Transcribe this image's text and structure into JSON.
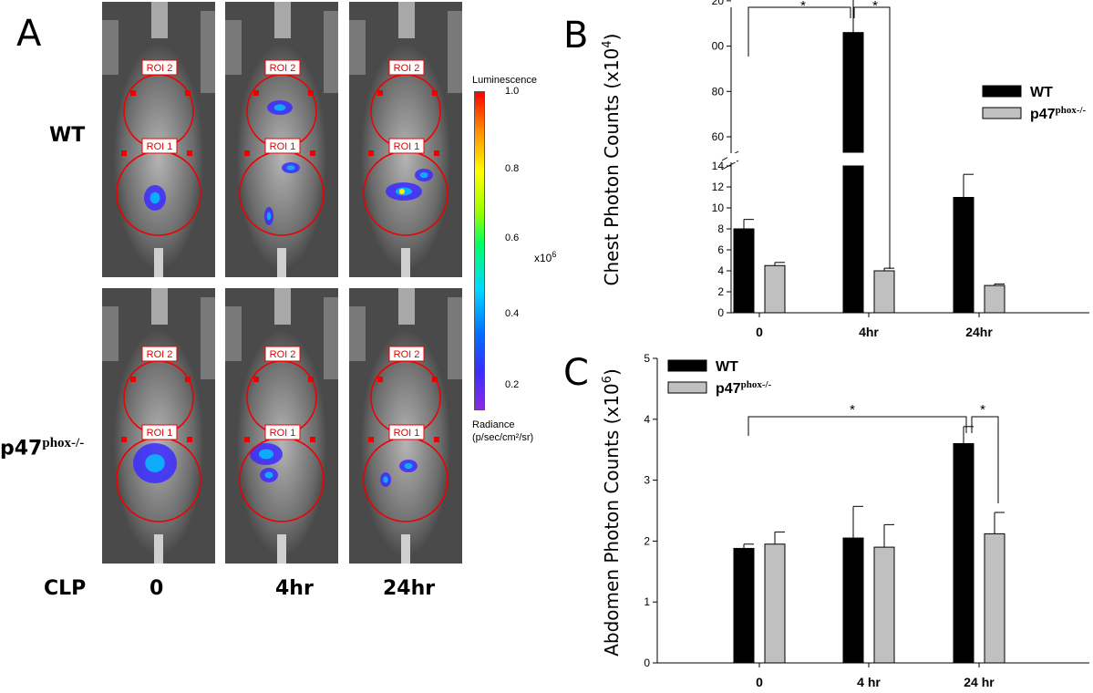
{
  "figure": {
    "panel_a": {
      "letter": "A",
      "row_labels": [
        {
          "text": "WT",
          "sup": ""
        },
        {
          "text": "p47",
          "sup": "phox-/-"
        }
      ],
      "col_labels": [
        "CLP",
        "0",
        "4hr",
        "24hr"
      ],
      "roi_labels": [
        "ROI 2",
        "ROI 1"
      ],
      "colorbar": {
        "title": "Luminescence",
        "ticks": [
          "1.0",
          "0.8",
          "0.6",
          "0.4",
          "0.2"
        ],
        "scale_label": "x10",
        "scale_exp": "6",
        "units_line1": "Radiance",
        "units_line2": "(p/sec/cm²/sr)"
      }
    },
    "panel_b_letter": "B",
    "panel_c_letter": "C"
  },
  "chart_data": [
    {
      "type": "bar",
      "panel": "B",
      "ylabel": "Chest Photon Counts (x10",
      "ylabel_exp": "4",
      "categories": [
        "0",
        "4hr",
        "24hr"
      ],
      "series": [
        {
          "name": "WT",
          "values": [
            8.0,
            106,
            11.0
          ],
          "errors": [
            0.9,
            25,
            2.2
          ],
          "color": "#000000"
        },
        {
          "name": "p47",
          "name_sup": "phox-/-",
          "values": [
            4.5,
            4.0,
            2.6
          ],
          "errors": [
            0.3,
            0.25,
            0.15
          ],
          "color": "#c0c0c0"
        }
      ],
      "axis_break": {
        "lower": [
          0,
          14
        ],
        "upper": [
          60,
          120
        ]
      },
      "yticks_lower": [
        "0",
        "2",
        "4",
        "6",
        "8",
        "10",
        "12",
        "14"
      ],
      "yticks_upper": [
        "60",
        "80",
        "00",
        "20"
      ],
      "significance": [
        "*",
        "*"
      ],
      "legend_position": "top-right"
    },
    {
      "type": "bar",
      "panel": "C",
      "ylabel": "Abdomen Photon Counts (x10",
      "ylabel_exp": "6",
      "categories": [
        "0",
        "4 hr",
        "24 hr"
      ],
      "series": [
        {
          "name": "WT",
          "values": [
            1.88,
            2.05,
            3.6
          ],
          "errors": [
            0.07,
            0.52,
            0.28
          ],
          "color": "#000000"
        },
        {
          "name": "p47",
          "name_sup": "phox-/-",
          "values": [
            1.95,
            1.9,
            2.12
          ],
          "errors": [
            0.2,
            0.37,
            0.35
          ],
          "color": "#c0c0c0"
        }
      ],
      "ylim": [
        0,
        5
      ],
      "yticks": [
        "0",
        "1",
        "2",
        "3",
        "4",
        "5"
      ],
      "significance": [
        "*",
        "*"
      ],
      "legend_position": "top-left"
    }
  ]
}
